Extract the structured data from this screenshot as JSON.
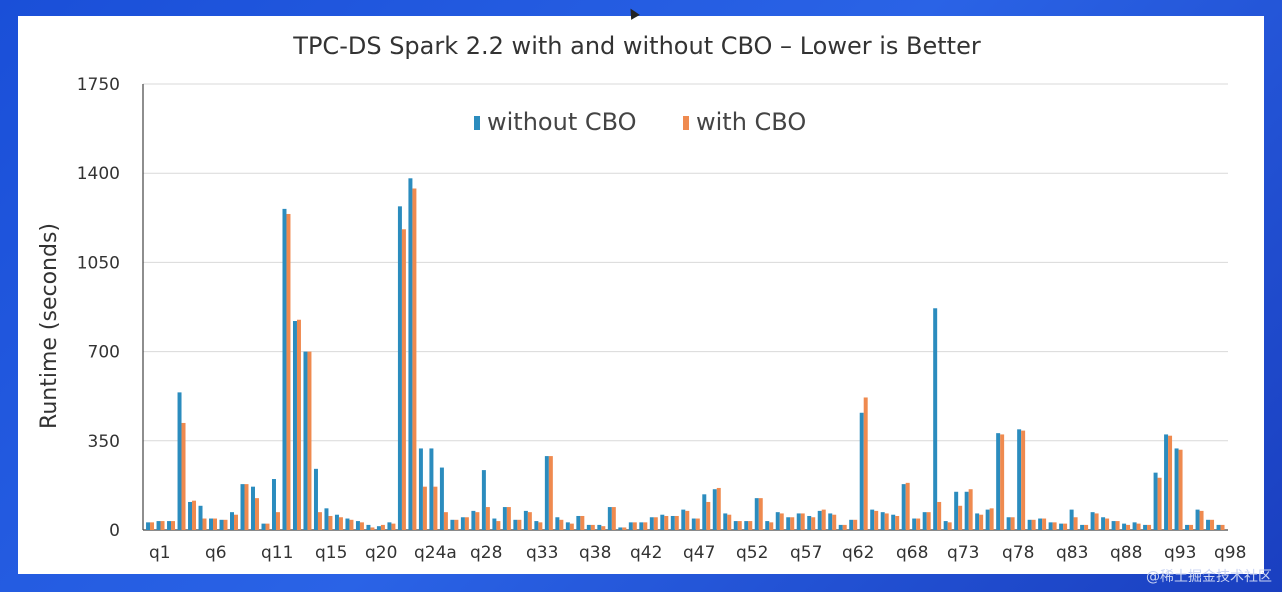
{
  "chart_data": {
    "type": "bar",
    "title": "TPC-DS Spark 2.2 with and without CBO – Lower is Better",
    "xlabel": "",
    "ylabel": "Runtime (seconds)",
    "ylim": [
      0,
      1750
    ],
    "yticks": [
      0,
      350,
      700,
      1050,
      1400,
      1750
    ],
    "grid": true,
    "legend_position": "top-center",
    "category_labels_shown": [
      "q1",
      "q6",
      "q11",
      "q15",
      "q20",
      "q24a",
      "q28",
      "q33",
      "q38",
      "q42",
      "q47",
      "q52",
      "q57",
      "q62",
      "q68",
      "q73",
      "q78",
      "q83",
      "q88",
      "q93",
      "q98"
    ],
    "series": [
      {
        "name": "without CBO",
        "color": "#2b8cbe",
        "values": [
          30,
          35,
          35,
          540,
          110,
          95,
          45,
          40,
          70,
          180,
          170,
          25,
          200,
          1260,
          820,
          700,
          240,
          85,
          60,
          45,
          35,
          20,
          15,
          30,
          1270,
          1380,
          320,
          320,
          245,
          40,
          50,
          75,
          235,
          45,
          90,
          40,
          75,
          35,
          290,
          50,
          30,
          55,
          20,
          20,
          90,
          10,
          30,
          30,
          50,
          60,
          55,
          80,
          45,
          140,
          160,
          65,
          35,
          35,
          125,
          35,
          70,
          50,
          65,
          55,
          75,
          65,
          20,
          40,
          460,
          80,
          70,
          60,
          180,
          45,
          70,
          870,
          35,
          150,
          150,
          65,
          80,
          380,
          50,
          395,
          40,
          45,
          30,
          25,
          80,
          20,
          70,
          50,
          35,
          25,
          30,
          20,
          225,
          375,
          320,
          20,
          80,
          40,
          20
        ]
      },
      {
        "name": "with CBO",
        "color": "#ef8a4f",
        "values": [
          30,
          35,
          35,
          420,
          115,
          45,
          45,
          40,
          60,
          180,
          125,
          25,
          70,
          1240,
          825,
          700,
          70,
          55,
          50,
          40,
          30,
          10,
          20,
          25,
          1180,
          1340,
          170,
          170,
          70,
          40,
          50,
          70,
          90,
          35,
          90,
          40,
          70,
          30,
          290,
          40,
          25,
          55,
          20,
          15,
          90,
          10,
          30,
          30,
          50,
          55,
          55,
          75,
          45,
          110,
          165,
          60,
          35,
          35,
          125,
          30,
          65,
          50,
          65,
          50,
          80,
          60,
          20,
          40,
          520,
          75,
          65,
          55,
          185,
          45,
          70,
          110,
          30,
          95,
          160,
          60,
          85,
          375,
          50,
          390,
          40,
          45,
          30,
          25,
          50,
          20,
          65,
          45,
          35,
          20,
          25,
          20,
          205,
          370,
          315,
          20,
          75,
          40,
          20
        ]
      }
    ]
  },
  "watermark": "@稀土掘金技术社区"
}
